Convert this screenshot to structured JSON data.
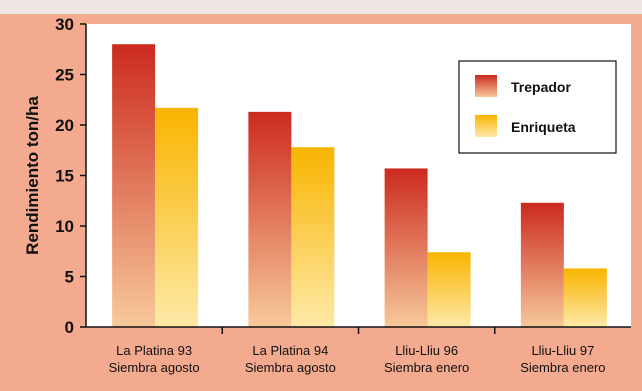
{
  "chart_data": {
    "type": "bar",
    "ylabel": "Rendimiento ton/ha",
    "ylim": [
      0,
      30
    ],
    "yticks": [
      0,
      5,
      10,
      15,
      20,
      25,
      30
    ],
    "grid": false,
    "legend_position": "top-right",
    "categories": [
      [
        "La Platina 93",
        "Siembra agosto"
      ],
      [
        "La Platina 94",
        "Siembra agosto"
      ],
      [
        "Lliu-Lliu 96",
        "Siembra enero"
      ],
      [
        "Lliu-Lliu 97",
        "Siembra enero"
      ]
    ],
    "series": [
      {
        "name": "Trepador",
        "values": [
          28.0,
          21.3,
          15.7,
          12.3
        ],
        "color_top": "#cc2a1e",
        "color_bottom": "#f7c99a"
      },
      {
        "name": "Enriqueta",
        "values": [
          21.7,
          17.8,
          7.4,
          5.8
        ],
        "color_top": "#f9b400",
        "color_bottom": "#fde9a8"
      }
    ]
  },
  "colors": {
    "background": "#f4aa8e",
    "plot_background": "#ffffff",
    "top_strip": "#ede6e2"
  }
}
